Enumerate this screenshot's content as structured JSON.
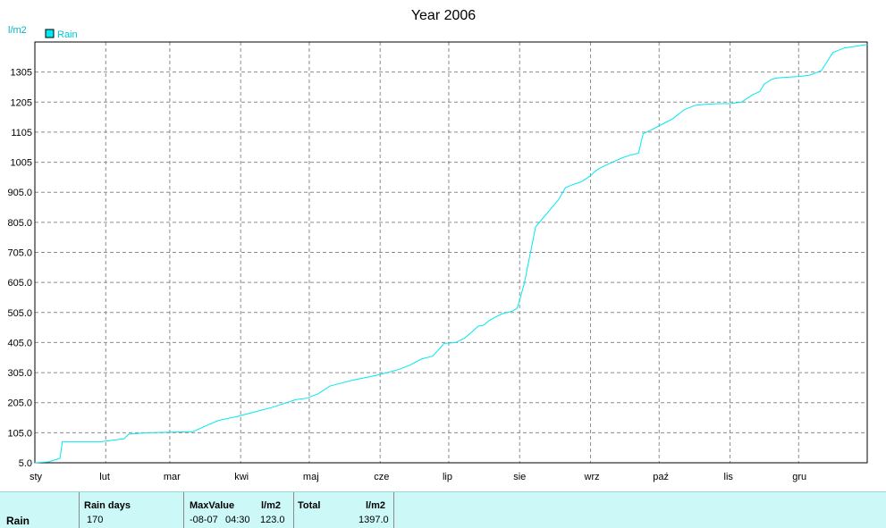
{
  "chart_data": {
    "type": "line",
    "title": "Year 2006",
    "ylabel": "l/m2",
    "legend": "top-left",
    "grid": true,
    "ylim": [
      5.0,
      1405.0
    ],
    "y_ticks": [
      "5.0",
      "105.0",
      "205.0",
      "305.0",
      "405.0",
      "505.0",
      "605.0",
      "705.0",
      "805.0",
      "905.0",
      "1005",
      "1105",
      "1205",
      "1305"
    ],
    "x_ticks": [
      "sty",
      "lut",
      "mar",
      "kwi",
      "maj",
      "cze",
      "lip",
      "sie",
      "wrz",
      "paź",
      "lis",
      "gru"
    ],
    "colors": {
      "line": "#00e8f0",
      "grid": "#8c8c8c",
      "table_bg": "#ccf8f8"
    },
    "series": [
      {
        "name": "Rain",
        "x": [
          1,
          7,
          10,
          12,
          13,
          30,
          40,
          42,
          50,
          70,
          75,
          81,
          90,
          100,
          105,
          115,
          120,
          125,
          130,
          135,
          140,
          150,
          160,
          165,
          170,
          175,
          180,
          185,
          189,
          192,
          195,
          197,
          200,
          205,
          210,
          212,
          215,
          220,
          230,
          233,
          236,
          238,
          240,
          242,
          244,
          246,
          248,
          252,
          255,
          258,
          262,
          265,
          267,
          270,
          275,
          280,
          285,
          290,
          295,
          300,
          305,
          310,
          315,
          318,
          320,
          323,
          325,
          330,
          335,
          340,
          345,
          350,
          355,
          365
        ],
        "values": [
          5,
          8,
          15,
          20,
          75,
          75,
          85,
          100,
          105,
          108,
          125,
          145,
          160,
          180,
          190,
          215,
          220,
          235,
          260,
          270,
          280,
          295,
          315,
          330,
          350,
          360,
          402,
          405,
          420,
          440,
          460,
          462,
          480,
          500,
          510,
          520,
          600,
          790,
          880,
          920,
          930,
          935,
          940,
          950,
          960,
          975,
          985,
          1000,
          1010,
          1020,
          1030,
          1035,
          1100,
          1110,
          1130,
          1150,
          1180,
          1195,
          1198,
          1200,
          1200,
          1205,
          1230,
          1240,
          1265,
          1280,
          1285,
          1288,
          1290,
          1295,
          1310,
          1370,
          1385,
          1397
        ]
      }
    ]
  },
  "summary": {
    "row_label": "Rain",
    "rain_days": {
      "header": "Rain days",
      "value": "170"
    },
    "max_value": {
      "header": "MaxValue",
      "unit": "l/m2",
      "date": "-08-07",
      "time": "04:30",
      "value": "123.0"
    },
    "total": {
      "header": "Total",
      "unit": "l/m2",
      "value": "1397.0"
    }
  }
}
